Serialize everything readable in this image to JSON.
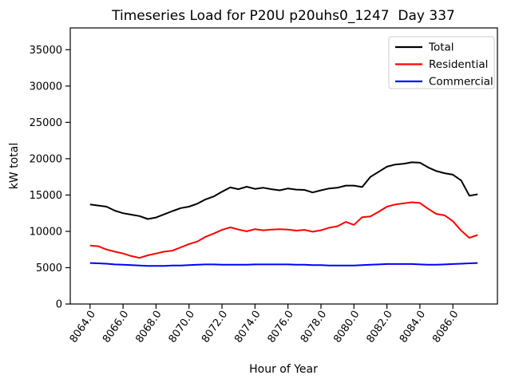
{
  "window": {
    "background": "#ffffff"
  },
  "chart_data": {
    "type": "line",
    "title": "Timeseries Load for P20U p20uhs0_1247  Day 337",
    "xlabel": "Hour of Year",
    "ylabel": "kW total",
    "xlim": [
      8062.8,
      8088.7
    ],
    "ylim": [
      0,
      38000
    ],
    "grid": false,
    "legend_position": "upper-right",
    "legend_frame_color": "#cccccc",
    "xticks": [
      8064,
      8066,
      8068,
      8070,
      8072,
      8074,
      8076,
      8078,
      8080,
      8082,
      8084,
      8086
    ],
    "xtick_labels": [
      "8064.0",
      "8066.0",
      "8068.0",
      "8070.0",
      "8072.0",
      "8074.0",
      "8076.0",
      "8078.0",
      "8080.0",
      "8082.0",
      "8084.0",
      "8086.0"
    ],
    "xtick_rotation_deg": 55,
    "yticks": [
      0,
      5000,
      10000,
      15000,
      20000,
      25000,
      30000,
      35000
    ],
    "ytick_labels": [
      "0",
      "5000",
      "10000",
      "15000",
      "20000",
      "25000",
      "30000",
      "35000"
    ],
    "x": [
      8064.0,
      8064.5,
      8065.0,
      8065.5,
      8066.0,
      8066.5,
      8067.0,
      8067.5,
      8068.0,
      8068.5,
      8069.0,
      8069.5,
      8070.0,
      8070.5,
      8071.0,
      8071.5,
      8072.0,
      8072.5,
      8073.0,
      8073.5,
      8074.0,
      8074.5,
      8075.0,
      8075.5,
      8076.0,
      8076.5,
      8077.0,
      8077.5,
      8078.0,
      8078.5,
      8079.0,
      8079.5,
      8080.0,
      8080.5,
      8081.0,
      8081.5,
      8082.0,
      8082.5,
      8083.0,
      8083.5,
      8084.0,
      8084.5,
      8085.0,
      8085.5,
      8086.0,
      8086.5,
      8087.0,
      8087.5
    ],
    "series": [
      {
        "name": "Total",
        "color": "#000000",
        "values": [
          13700,
          13550,
          13400,
          12850,
          12500,
          12300,
          12100,
          11700,
          11900,
          12350,
          12800,
          13200,
          13400,
          13800,
          14400,
          14800,
          15450,
          16050,
          15800,
          16150,
          15850,
          16000,
          15800,
          15650,
          15900,
          15750,
          15700,
          15350,
          15650,
          15900,
          16000,
          16300,
          16300,
          16100,
          17500,
          18200,
          18900,
          19200,
          19300,
          19500,
          19450,
          18800,
          18300,
          18000,
          17800,
          17000,
          14900,
          15100
        ]
      },
      {
        "name": "Residential",
        "color": "#ff0000",
        "values": [
          8050,
          7950,
          7500,
          7200,
          6950,
          6600,
          6350,
          6700,
          6950,
          7200,
          7350,
          7800,
          8250,
          8600,
          9250,
          9700,
          10200,
          10550,
          10250,
          10000,
          10300,
          10150,
          10250,
          10300,
          10250,
          10100,
          10200,
          9950,
          10150,
          10500,
          10700,
          11300,
          10900,
          11950,
          12050,
          12700,
          13400,
          13700,
          13850,
          14000,
          13900,
          13100,
          12400,
          12200,
          11400,
          10100,
          9100,
          9500
        ]
      },
      {
        "name": "Commercial",
        "color": "#0000ff",
        "values": [
          5650,
          5600,
          5550,
          5450,
          5400,
          5350,
          5300,
          5250,
          5250,
          5250,
          5300,
          5300,
          5350,
          5400,
          5450,
          5450,
          5400,
          5400,
          5400,
          5400,
          5450,
          5450,
          5450,
          5450,
          5450,
          5400,
          5400,
          5350,
          5350,
          5300,
          5300,
          5300,
          5300,
          5350,
          5400,
          5450,
          5500,
          5500,
          5500,
          5500,
          5450,
          5400,
          5400,
          5450,
          5500,
          5550,
          5600,
          5650
        ]
      }
    ]
  }
}
